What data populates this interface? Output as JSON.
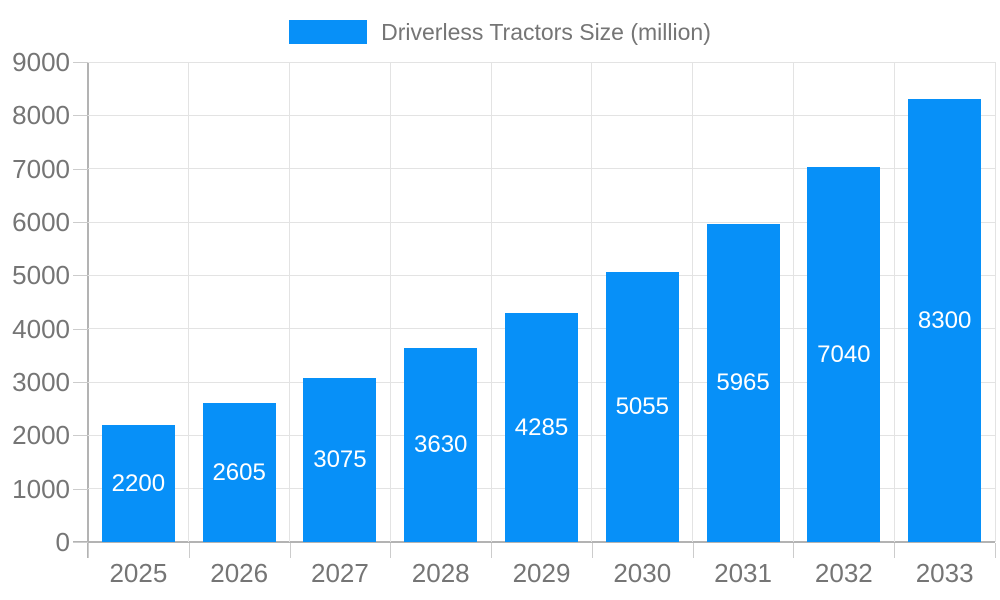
{
  "legend": {
    "label": "Driverless Tractors Size (million)"
  },
  "colors": {
    "bar": "#0790f8",
    "grid": "#e3e3e3",
    "axis": "#b3b3b3",
    "tick": "#cccccc",
    "axis_text": "#757575",
    "value_label_text": "#ffffff"
  },
  "chart_data": {
    "type": "bar",
    "title": "Driverless Tractors Size (million)",
    "categories": [
      "2025",
      "2026",
      "2027",
      "2028",
      "2029",
      "2030",
      "2031",
      "2032",
      "2033"
    ],
    "values": [
      2200,
      2605,
      3075,
      3630,
      4285,
      5055,
      5965,
      7040,
      8300
    ],
    "xlabel": "",
    "ylabel": "",
    "ylim": [
      0,
      9000
    ],
    "ytick_step": 1000,
    "ytick_labels": [
      "0",
      "1000",
      "2000",
      "3000",
      "4000",
      "5000",
      "6000",
      "7000",
      "8000",
      "9000"
    ],
    "grid": true,
    "legend_position": "top",
    "value_labels": "centered-inside-bars"
  }
}
